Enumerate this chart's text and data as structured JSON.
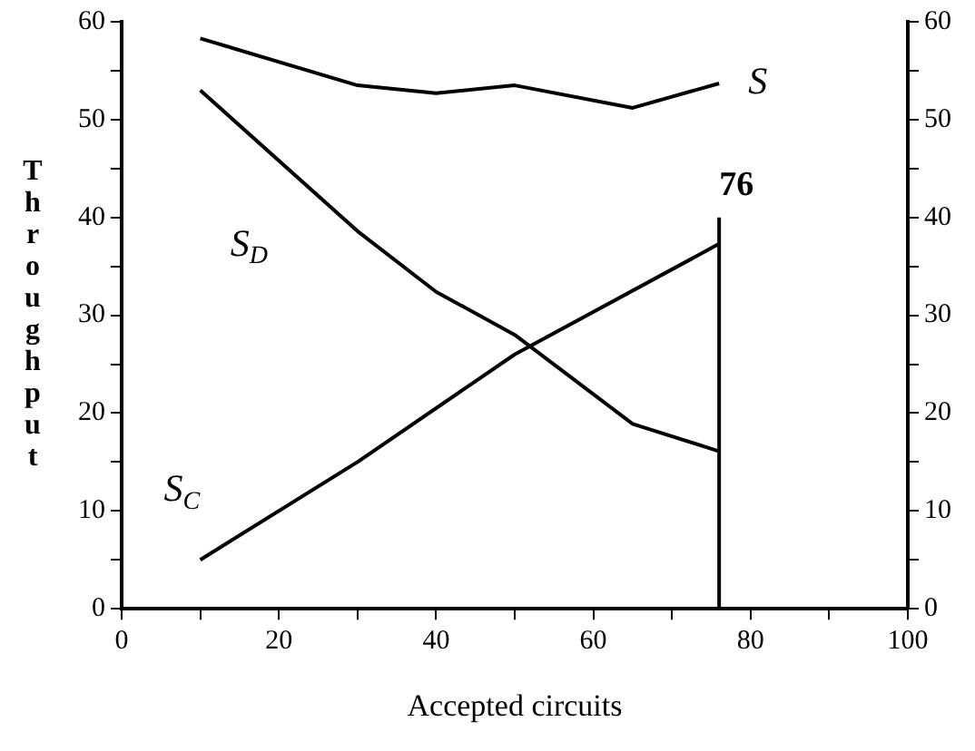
{
  "chart_data": {
    "type": "line",
    "xlabel": "Accepted circuits",
    "ylabel": "Throughput",
    "series": [
      {
        "name": "S",
        "color": "#000000",
        "x": [
          10,
          30,
          40,
          50,
          65,
          76
        ],
        "values": [
          58.3,
          53.5,
          52.7,
          53.5,
          51.2,
          53.7
        ]
      },
      {
        "name": "S$_{D}$",
        "color": "#000000",
        "x": [
          10,
          30,
          40,
          50,
          65,
          76
        ],
        "values": [
          53,
          38.6,
          32.4,
          28,
          18.9,
          16.1
        ]
      },
      {
        "name": "S$_{C}$",
        "color": "#000000",
        "x": [
          10,
          30,
          50,
          76
        ],
        "values": [
          5,
          15,
          26,
          37.3
        ]
      },
      {
        "color": "#000000",
        "x": [
          76,
          76
        ],
        "values": [
          0,
          40
        ]
      }
    ],
    "annotations": [
      {
        "text": "76",
        "x": 76,
        "y": 40
      }
    ],
    "xlim": [
      0,
      100
    ],
    "xticks": [
      0,
      {
        "value": 10,
        "label": null
      },
      20,
      {
        "value": 30,
        "label": null
      },
      40,
      {
        "value": 50,
        "label": null
      },
      60,
      {
        "value": 70,
        "label": null
      },
      80,
      {
        "value": 90,
        "label": null
      },
      100
    ],
    "ylim": [
      0,
      60
    ],
    "yticks": [
      0,
      {
        "value": 5,
        "label": null
      },
      10,
      {
        "value": 15,
        "label": null
      },
      20,
      {
        "value": 25,
        "label": null
      },
      30,
      {
        "value": 35,
        "label": null
      },
      40,
      {
        "value": 45,
        "label": null
      },
      50,
      {
        "value": 55,
        "label": null
      },
      60
    ],
    "y2lim": [
      0,
      60
    ],
    "y2ticks": [
      0,
      {
        "value": 5,
        "label": null
      },
      10,
      {
        "value": 15,
        "label": null
      },
      20,
      {
        "value": 25,
        "label": null
      },
      30,
      {
        "value": 35,
        "label": null
      },
      40,
      {
        "value": 45,
        "label": null
      },
      50,
      {
        "value": 55,
        "label": null
      },
      60
    ],
    "grid": false,
    "legend": false,
    "marker": "none",
    "line_style": "solid"
  }
}
